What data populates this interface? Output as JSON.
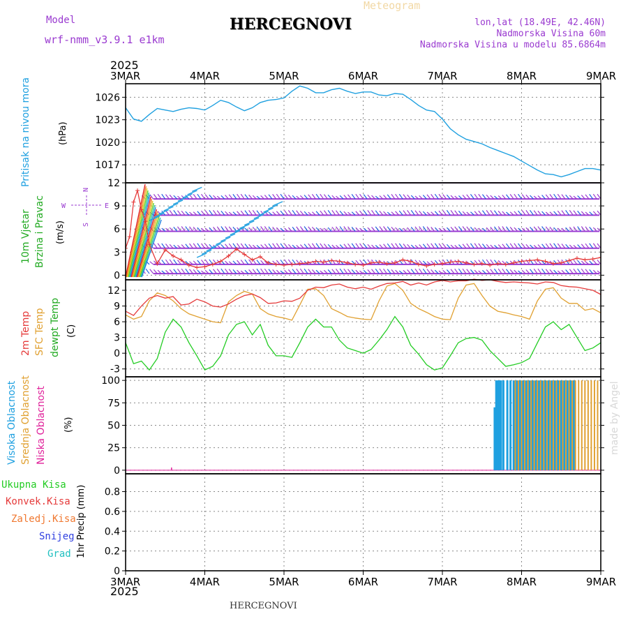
{
  "header": {
    "model_label": "Model",
    "model_name": "wrf-nmm_v3.9.1  e1km",
    "station": "HERCEGNOVI",
    "product": "Meteogram",
    "lonlat": "lon,lat (18.49E, 42.46N)",
    "elevation": "Nadmorska Visina 60m",
    "model_elevation": "Nadmorska Visina u modelu 85.6864m",
    "year": "2025",
    "footer_station": "HERCEGNOVI",
    "credit": "made by Angel"
  },
  "colors": {
    "pressure": "#1fa0e0",
    "temp2m": "#e53a3a",
    "sfc": "#e0a030",
    "dewpt": "#22cc22",
    "wind_label": "#22aa22",
    "cloud_high": "#1fa0e0",
    "cloud_mid": "#e0a030",
    "cloud_low": "#e0209a",
    "purple": "#9a3ad0",
    "grid": "#888888"
  },
  "time_axis": {
    "labels": [
      "3MAR",
      "4MAR",
      "5MAR",
      "6MAR",
      "7MAR",
      "8MAR",
      "9MAR"
    ],
    "start_day": 3,
    "end_day": 9
  },
  "panels": {
    "pressure": {
      "labels": [
        "Pritisak na nivou mora",
        "(hPa)"
      ],
      "yticks": [
        "1026",
        "1023",
        "1020",
        "1017"
      ]
    },
    "wind": {
      "labels": [
        "10m Vjetar",
        "Brzina i Pravac",
        "(m/s)"
      ],
      "compass": {
        "n": "N",
        "s": "S",
        "e": "E",
        "w": "W"
      },
      "yticks": [
        "12",
        "9",
        "6",
        "3",
        "0"
      ]
    },
    "temperature": {
      "labels": [
        "2m Temp",
        "SFC Temp",
        "dewpt Temp",
        "(C)"
      ],
      "yticks": [
        "12",
        "9",
        "6",
        "3",
        "0",
        "-3"
      ]
    },
    "clouds": {
      "labels": [
        "Visoka Oblacnost",
        "Srednja Oblacnost",
        "Niska Oblacnost",
        "(%)"
      ],
      "yticks": [
        "100",
        "75",
        "50",
        "25",
        "0"
      ]
    },
    "precip": {
      "labels": [
        "Ukupna Kisa",
        "Konvek.Kisa",
        "Zaledj.Kisa",
        "Snijeg",
        "Grad",
        "1hr Precip (mm)"
      ],
      "yticks": [
        "0.8",
        "0.6",
        "0.4",
        "0.2",
        "0"
      ]
    }
  },
  "chart_data": [
    {
      "type": "line",
      "title": "Pritisak na nivou mora",
      "ylabel": "(hPa)",
      "ylim": [
        1014.6,
        1027.8
      ],
      "x": [
        3.0,
        3.1,
        3.2,
        3.3,
        3.4,
        3.5,
        3.6,
        3.7,
        3.8,
        3.9,
        4.0,
        4.1,
        4.2,
        4.3,
        4.4,
        4.5,
        4.6,
        4.7,
        4.8,
        4.9,
        5.0,
        5.1,
        5.2,
        5.3,
        5.4,
        5.5,
        5.6,
        5.7,
        5.8,
        5.9,
        6.0,
        6.1,
        6.2,
        6.3,
        6.4,
        6.5,
        6.6,
        6.7,
        6.8,
        6.9,
        7.0,
        7.1,
        7.2,
        7.3,
        7.4,
        7.5,
        7.6,
        7.7,
        7.8,
        7.9,
        8.0,
        8.1,
        8.2,
        8.3,
        8.4,
        8.5,
        8.6,
        8.7,
        8.8,
        8.9,
        9.0
      ],
      "series": [
        {
          "values": [
            1024.6,
            1023.1,
            1022.8,
            1023.7,
            1024.5,
            1024.3,
            1024.1,
            1024.4,
            1024.6,
            1024.5,
            1024.3,
            1024.9,
            1025.6,
            1025.3,
            1024.7,
            1024.2,
            1024.6,
            1025.3,
            1025.6,
            1025.7,
            1025.9,
            1026.8,
            1027.5,
            1027.2,
            1026.6,
            1026.6,
            1027.0,
            1027.2,
            1026.8,
            1026.5,
            1026.7,
            1026.7,
            1026.3,
            1026.2,
            1026.5,
            1026.4,
            1025.7,
            1024.9,
            1024.3,
            1024.1,
            1023.1,
            1021.8,
            1021.0,
            1020.4,
            1020.1,
            1019.8,
            1019.3,
            1018.9,
            1018.5,
            1018.1,
            1017.5,
            1016.9,
            1016.3,
            1015.8,
            1015.7,
            1015.4,
            1015.7,
            1016.1,
            1016.5,
            1016.5,
            1016.3
          ]
        }
      ]
    },
    {
      "type": "line",
      "title": "10m Vjetar Brzina i Pravac",
      "ylabel": "(m/s)",
      "ylim": [
        -0.6,
        12.0
      ],
      "x": [
        3.0,
        3.05,
        3.1,
        3.15,
        3.2,
        3.25,
        3.3,
        3.4,
        3.5,
        3.6,
        3.7,
        3.8,
        3.9,
        4.0,
        4.1,
        4.2,
        4.3,
        4.4,
        4.5,
        4.6,
        4.7,
        4.8,
        4.9,
        5.0,
        5.1,
        5.2,
        5.3,
        5.4,
        5.5,
        5.6,
        5.7,
        5.8,
        5.9,
        6.0,
        6.1,
        6.2,
        6.3,
        6.4,
        6.5,
        6.6,
        6.7,
        6.8,
        6.9,
        7.0,
        7.1,
        7.2,
        7.3,
        7.4,
        7.5,
        7.6,
        7.7,
        7.8,
        7.9,
        8.0,
        8.1,
        8.2,
        8.3,
        8.4,
        8.5,
        8.6,
        8.7,
        8.8,
        8.9,
        9.0
      ],
      "series": [
        {
          "name": "speed",
          "values": [
            3.5,
            5.0,
            9.5,
            11.0,
            8.5,
            7.0,
            4.0,
            1.5,
            3.3,
            2.5,
            2.0,
            1.3,
            1.0,
            1.1,
            1.4,
            1.8,
            2.5,
            3.4,
            2.7,
            2.0,
            2.4,
            1.6,
            1.4,
            1.3,
            1.4,
            1.5,
            1.6,
            1.8,
            1.7,
            1.9,
            1.8,
            1.6,
            1.4,
            1.3,
            1.6,
            1.7,
            1.5,
            1.6,
            2.0,
            1.8,
            1.4,
            1.2,
            1.4,
            1.5,
            1.7,
            1.8,
            1.6,
            1.4,
            1.5,
            1.3,
            1.5,
            1.4,
            1.6,
            1.8,
            1.9,
            2.0,
            1.8,
            1.5,
            1.6,
            1.9,
            2.2,
            2.0,
            2.1,
            2.3
          ]
        }
      ],
      "guide_levels": [
        0.2,
        1.4,
        3.5,
        5.7,
        7.8,
        9.9,
        12.0
      ]
    },
    {
      "type": "line",
      "title": "2m Temp / SFC Temp / dewpt Temp",
      "ylabel": "(C)",
      "ylim": [
        -4.5,
        14.0
      ],
      "x": [
        3.0,
        3.1,
        3.2,
        3.3,
        3.4,
        3.5,
        3.6,
        3.7,
        3.8,
        3.9,
        4.0,
        4.1,
        4.2,
        4.3,
        4.4,
        4.5,
        4.6,
        4.7,
        4.8,
        4.9,
        5.0,
        5.1,
        5.2,
        5.3,
        5.4,
        5.5,
        5.6,
        5.7,
        5.8,
        5.9,
        6.0,
        6.1,
        6.2,
        6.3,
        6.4,
        6.5,
        6.6,
        6.7,
        6.8,
        6.9,
        7.0,
        7.1,
        7.2,
        7.3,
        7.4,
        7.5,
        7.6,
        7.7,
        7.8,
        7.9,
        8.0,
        8.1,
        8.2,
        8.3,
        8.4,
        8.5,
        8.6,
        8.7,
        8.8,
        8.9,
        9.0
      ],
      "series": [
        {
          "name": "2m Temp",
          "values": [
            8.0,
            7.2,
            9.0,
            10.5,
            11.0,
            10.5,
            10.8,
            9.2,
            9.4,
            10.3,
            9.8,
            9.0,
            8.8,
            9.4,
            10.3,
            11.0,
            11.3,
            10.6,
            9.5,
            9.6,
            10.0,
            9.9,
            10.5,
            12.0,
            12.6,
            12.5,
            13.0,
            13.2,
            12.6,
            12.3,
            12.6,
            12.2,
            12.8,
            13.3,
            13.4,
            13.7,
            13.0,
            13.4,
            13.0,
            13.6,
            13.9,
            13.6,
            13.8,
            13.8,
            14.1,
            13.9,
            14.0,
            13.7,
            13.5,
            13.6,
            13.5,
            13.4,
            13.2,
            13.6,
            13.5,
            12.9,
            12.7,
            12.6,
            12.3,
            12.0,
            11.2
          ]
        },
        {
          "name": "SFC Temp",
          "values": [
            7.3,
            6.5,
            7.0,
            10.0,
            11.5,
            11.0,
            10.0,
            8.5,
            7.5,
            7.0,
            6.5,
            6.0,
            5.8,
            9.8,
            11.0,
            11.8,
            11.3,
            8.5,
            7.5,
            7.0,
            6.7,
            6.3,
            9.2,
            12.2,
            12.3,
            11.0,
            8.5,
            7.8,
            7.0,
            6.7,
            6.5,
            6.4,
            10.0,
            12.8,
            13.3,
            12.0,
            9.5,
            8.5,
            7.8,
            7.0,
            6.5,
            6.4,
            10.5,
            13.0,
            13.3,
            11.0,
            9.0,
            8.0,
            7.7,
            7.3,
            7.0,
            6.5,
            10.0,
            12.2,
            12.5,
            10.5,
            9.5,
            9.5,
            8.2,
            8.5,
            7.7
          ]
        },
        {
          "name": "dewpt Temp",
          "values": [
            2.0,
            -2.0,
            -1.5,
            -3.2,
            -1.0,
            4.0,
            6.5,
            5.0,
            2.0,
            -0.5,
            -3.2,
            -2.5,
            -0.5,
            3.5,
            5.5,
            6.0,
            3.5,
            5.5,
            1.5,
            -0.5,
            -0.5,
            -0.8,
            2.0,
            5.0,
            6.5,
            5.0,
            5.0,
            2.5,
            1.0,
            0.5,
            0.0,
            0.7,
            2.5,
            4.5,
            7.0,
            5.0,
            1.5,
            -0.2,
            -2.2,
            -3.2,
            -2.8,
            -0.5,
            2.0,
            2.8,
            3.0,
            2.5,
            0.5,
            -1.0,
            -2.5,
            -2.2,
            -1.8,
            -1.0,
            2.0,
            5.0,
            6.0,
            4.5,
            5.5,
            3.0,
            0.5,
            1.0,
            2.0
          ]
        }
      ]
    },
    {
      "type": "bar",
      "title": "Visoka / Srednja / Niska Oblacnost",
      "ylabel": "(%)",
      "ylim": [
        -4,
        104
      ],
      "series": [
        {
          "name": "Visoka Oblacnost",
          "x": [
            7.66,
            7.68,
            7.7,
            7.72,
            7.74,
            7.77,
            7.82,
            7.86,
            7.9,
            7.94,
            7.98,
            8.02,
            8.06,
            8.1,
            8.14,
            8.18,
            8.22,
            8.26,
            8.3,
            8.34,
            8.38,
            8.42,
            8.46,
            8.5,
            8.54,
            8.58,
            8.62,
            8.66
          ],
          "values": [
            70,
            100,
            100,
            100,
            100,
            100,
            100,
            100,
            100,
            100,
            100,
            100,
            100,
            100,
            100,
            100,
            100,
            100,
            100,
            100,
            100,
            100,
            100,
            100,
            100,
            100,
            100,
            100
          ]
        },
        {
          "name": "Srednja Oblacnost",
          "x": [
            7.92,
            7.96,
            8.0,
            8.04,
            8.08,
            8.12,
            8.16,
            8.2,
            8.24,
            8.28,
            8.32,
            8.36,
            8.4,
            8.44,
            8.48,
            8.52,
            8.56,
            8.6,
            8.64,
            8.68,
            8.72,
            8.76,
            8.8,
            8.84,
            8.88,
            8.92,
            8.96
          ],
          "values": [
            100,
            100,
            100,
            100,
            100,
            100,
            100,
            100,
            100,
            100,
            100,
            100,
            100,
            100,
            100,
            100,
            100,
            100,
            100,
            100,
            100,
            100,
            100,
            100,
            100,
            100,
            100
          ]
        },
        {
          "name": "Niska Oblacnost",
          "x": [
            3.58
          ],
          "values": [
            3
          ]
        }
      ]
    },
    {
      "type": "line",
      "title": "1hr Precip",
      "ylabel": "1hr Precip (mm)",
      "ylim": [
        0,
        0.98
      ],
      "series": []
    }
  ]
}
